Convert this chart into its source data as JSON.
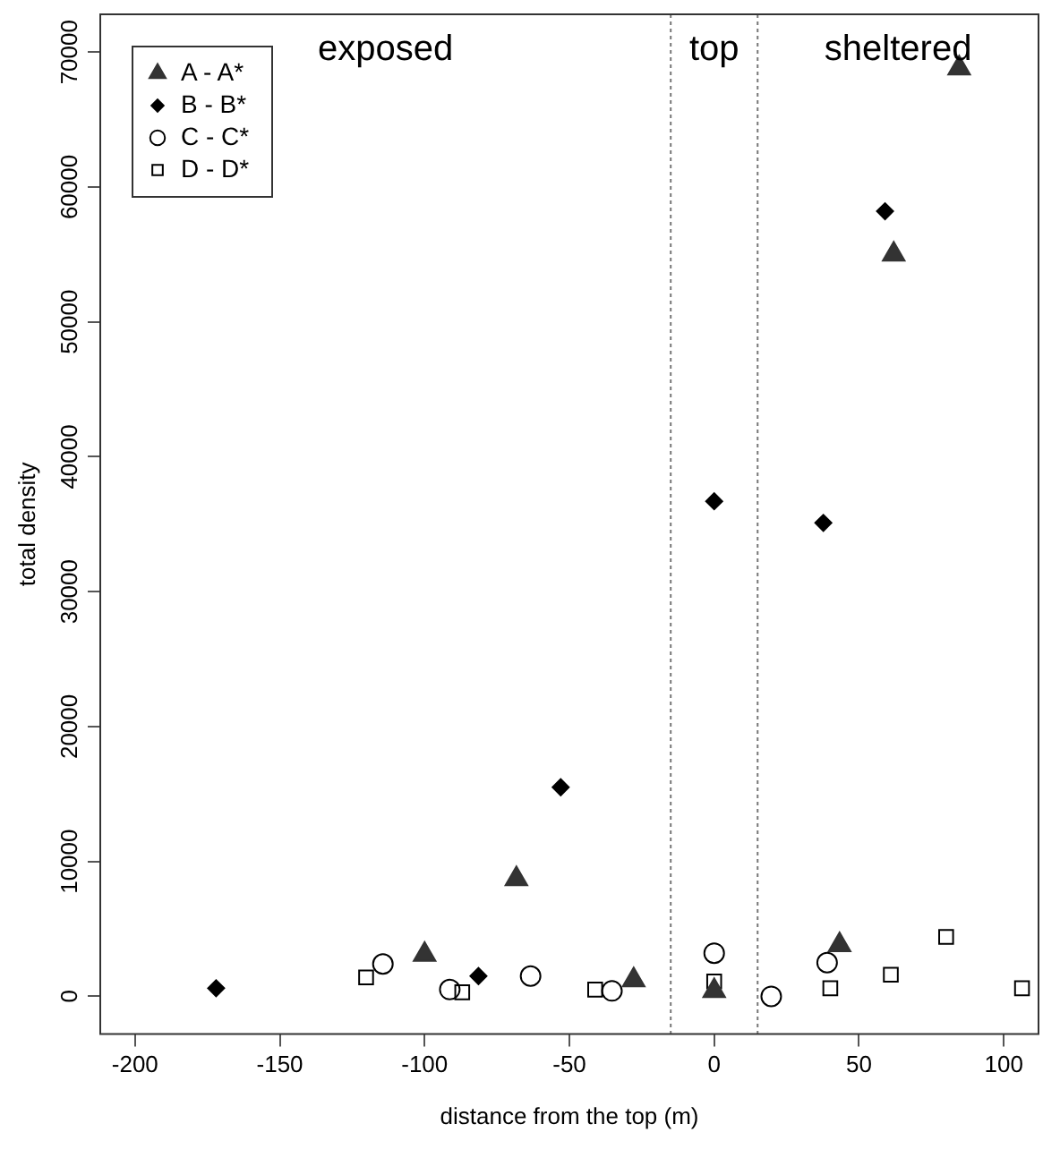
{
  "chart_data": {
    "type": "scatter",
    "xlabel": "distance from the top (m)",
    "ylabel": "total density",
    "xlim": [
      -212,
      112
    ],
    "xticks": [
      -200,
      -150,
      -100,
      -50,
      0,
      50,
      100
    ],
    "ylim": [
      -2800,
      72800
    ],
    "yticks": [
      0,
      10000,
      20000,
      30000,
      40000,
      50000,
      60000,
      70000
    ],
    "grid": false,
    "legend": "top left",
    "series": [
      {
        "name": "A - A*",
        "color": "#333333",
        "marker": "triangle",
        "x": [
          84.6,
          62,
          -68.3,
          -100,
          -27.8,
          0,
          43.3
        ],
        "values": [
          68800,
          55000,
          8700,
          3100,
          1200,
          400,
          3800
        ]
      },
      {
        "name": "B - B*",
        "color": "#000000",
        "marker": "diamond",
        "x": [
          -172,
          -53,
          -81.4,
          0,
          37.7,
          59
        ],
        "values": [
          600,
          15500,
          1500,
          36700,
          35100,
          58200
        ]
      },
      {
        "name": "C - C*",
        "color": "#000000",
        "marker": "circle",
        "x": [
          -114.4,
          -91.3,
          -63.4,
          -35.3,
          0,
          19.7,
          39
        ],
        "values": [
          2400,
          500,
          1500,
          400,
          3200,
          0,
          2500
        ]
      },
      {
        "name": "D - D*",
        "color": "#000000",
        "marker": "square",
        "x": [
          -120.2,
          -87,
          -41.1,
          0,
          40.1,
          61,
          80.1,
          106.3
        ],
        "values": [
          1400,
          300,
          500,
          1100,
          600,
          1600,
          4400,
          600
        ]
      }
    ],
    "ref_lines": [
      {
        "axis": "x",
        "value": -15,
        "line_style": "dotted",
        "color": "#777777"
      },
      {
        "axis": "x",
        "value": 15,
        "line_style": "dotted",
        "color": "#777777"
      }
    ],
    "annotations": [
      "exposed",
      "top",
      "sheltered"
    ]
  }
}
